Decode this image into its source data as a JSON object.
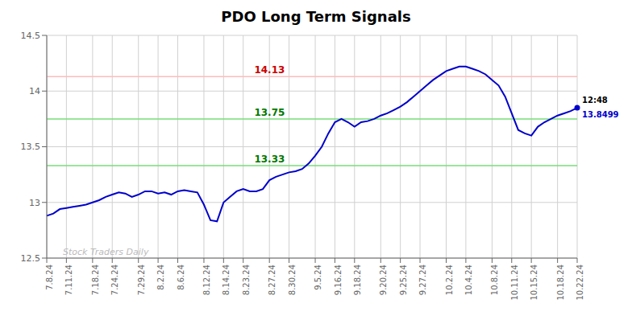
{
  "chart_data": {
    "type": "line",
    "title": "PDO Long Term Signals",
    "categories": [
      "7.8.24",
      null,
      null,
      "7.11.24",
      null,
      null,
      null,
      "7.18.24",
      null,
      null,
      "7.24.24",
      null,
      null,
      null,
      "7.29.24",
      null,
      null,
      "8.2.24",
      null,
      null,
      "8.6.24",
      null,
      null,
      null,
      "8.12.24",
      null,
      null,
      "8.14.24",
      null,
      null,
      "8.23.24",
      null,
      null,
      null,
      "8.27.24",
      null,
      null,
      "8.30.24",
      null,
      null,
      null,
      "9.5.24",
      null,
      null,
      "9.16.24",
      null,
      null,
      "9.18.24",
      null,
      null,
      null,
      "9.20.24",
      null,
      null,
      "9.25.24",
      null,
      null,
      "9.27.24",
      null,
      null,
      null,
      "10.2.24",
      null,
      null,
      "10.4.24",
      null,
      null,
      null,
      "10.8.24",
      null,
      null,
      "10.11.24",
      null,
      null,
      "10.15.24",
      null,
      null,
      null,
      "10.18.24",
      null,
      null,
      "10.22.24"
    ],
    "values": [
      12.88,
      12.9,
      12.94,
      12.95,
      12.96,
      12.97,
      12.98,
      13.0,
      13.02,
      13.05,
      13.07,
      13.09,
      13.08,
      13.05,
      13.07,
      13.1,
      13.1,
      13.08,
      13.09,
      13.07,
      13.1,
      13.11,
      13.1,
      13.09,
      12.98,
      12.84,
      12.83,
      13.0,
      13.05,
      13.1,
      13.12,
      13.1,
      13.1,
      13.12,
      13.2,
      13.23,
      13.25,
      13.27,
      13.28,
      13.3,
      13.35,
      13.42,
      13.5,
      13.62,
      13.72,
      13.75,
      13.72,
      13.68,
      13.72,
      13.73,
      13.75,
      13.78,
      13.8,
      13.83,
      13.86,
      13.9,
      13.95,
      14.0,
      14.05,
      14.1,
      14.14,
      14.18,
      14.2,
      14.22,
      14.22,
      14.2,
      14.18,
      14.15,
      14.1,
      14.05,
      13.95,
      13.8,
      13.65,
      13.62,
      13.6,
      13.68,
      13.72,
      13.75,
      13.78,
      13.8,
      13.82,
      13.8499
    ],
    "color": "#0000cc",
    "ylim": [
      12.5,
      14.5
    ],
    "yticks": [
      12.5,
      13,
      13.5,
      14,
      14.5
    ],
    "grid": true,
    "reference_lines": [
      {
        "value": 14.13,
        "label": "14.13",
        "color": "#ffbbbb",
        "label_color": "#cc0000"
      },
      {
        "value": 13.75,
        "label": "13.75",
        "color": "#77dd77",
        "label_color": "#007700"
      },
      {
        "value": 13.33,
        "label": "13.33",
        "color": "#77dd77",
        "label_color": "#007700"
      }
    ],
    "annotations": [
      {
        "text": "12:48",
        "color": "#000000"
      },
      {
        "text": "13.8499",
        "color": "#0000cc"
      }
    ],
    "watermark": {
      "text": "Stock Traders Daily",
      "color": "#bbbbbb"
    }
  }
}
